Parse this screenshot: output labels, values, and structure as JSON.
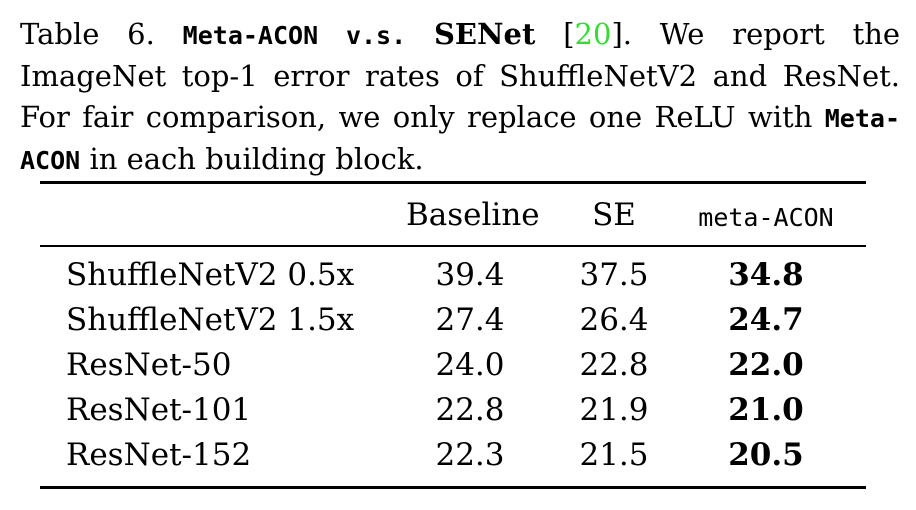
{
  "caption": {
    "label": "Table 6.",
    "title_mono": "Meta-ACON",
    "title_vs": "v.s.",
    "title_senet": "SENet",
    "cite_open": "[",
    "cite_num": "20",
    "cite_close": "].",
    "text_1": "We report the ImageNet top-1 error rates of ShuffleNetV2 and ResNet. For fair comparison, we only replace one ReLU with",
    "mono_2": "Meta-ACON",
    "text_2": "in each building block."
  },
  "table": {
    "headers": [
      "",
      "Baseline",
      "SE",
      "meta-ACON"
    ],
    "rows": [
      {
        "model": "ShuffleNetV2 0.5x",
        "baseline": "39.4",
        "se": "37.5",
        "meta_acon": "34.8"
      },
      {
        "model": "ShuffleNetV2 1.5x",
        "baseline": "27.4",
        "se": "26.4",
        "meta_acon": "24.7"
      },
      {
        "model": "ResNet-50",
        "baseline": "24.0",
        "se": "22.8",
        "meta_acon": "22.0"
      },
      {
        "model": "ResNet-101",
        "baseline": "22.8",
        "se": "21.9",
        "meta_acon": "21.0"
      },
      {
        "model": "ResNet-152",
        "baseline": "22.3",
        "se": "21.5",
        "meta_acon": "20.5"
      }
    ]
  },
  "colors": {
    "citation": "#33dd33",
    "text": "#000000"
  }
}
